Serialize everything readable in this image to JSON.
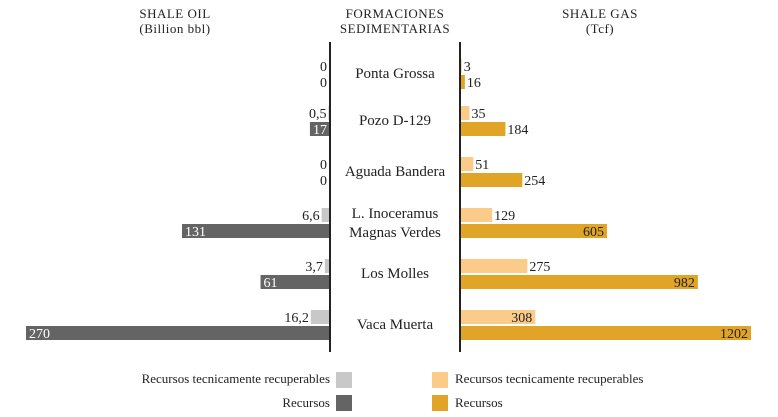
{
  "headers": {
    "left_title": "SHALE OIL",
    "left_unit": "(Billion bbl)",
    "center_title_1": "FORMACIONES",
    "center_title_2": "SEDIMENTARIAS",
    "right_title": "SHALE GAS",
    "right_unit": "(Tcf)"
  },
  "legend": {
    "oil_trr": "Recursos tecnicamente recuperables",
    "oil_res": "Recursos",
    "gas_trr": "Recursos tecnicamente recuperables",
    "gas_res": "Recursos"
  },
  "colors": {
    "oil_trr": "#c8c8c8",
    "oil_res": "#646464",
    "gas_trr": "#fbcb8a",
    "gas_res": "#e0a426",
    "axis": "#222222"
  },
  "chart_data": {
    "type": "bar",
    "categories": [
      [
        "Ponta Grossa"
      ],
      [
        "Pozo D-129"
      ],
      [
        "Aguada Bandera"
      ],
      [
        "L. Inoceramus",
        "Magnas Verdes"
      ],
      [
        "Los Molles"
      ],
      [
        "Vaca Muerta"
      ]
    ],
    "oil": {
      "trr_labels": [
        "0",
        "0,5",
        "0",
        "6,6",
        "3,7",
        "16,2"
      ],
      "trr_values": [
        0,
        0.5,
        0,
        6.6,
        3.7,
        16.2
      ],
      "res_labels": [
        "0",
        "17",
        "0",
        "131",
        "61",
        "270"
      ],
      "res_values": [
        0,
        17,
        0,
        131,
        61,
        270
      ]
    },
    "gas": {
      "trr_labels": [
        "3",
        "35",
        "51",
        "129",
        "275",
        "308"
      ],
      "trr_values": [
        3,
        35,
        51,
        129,
        275,
        308
      ],
      "res_labels": [
        "16",
        "184",
        "254",
        "605",
        "982",
        "1202"
      ],
      "res_values": [
        16,
        184,
        254,
        605,
        982,
        1202
      ]
    }
  }
}
